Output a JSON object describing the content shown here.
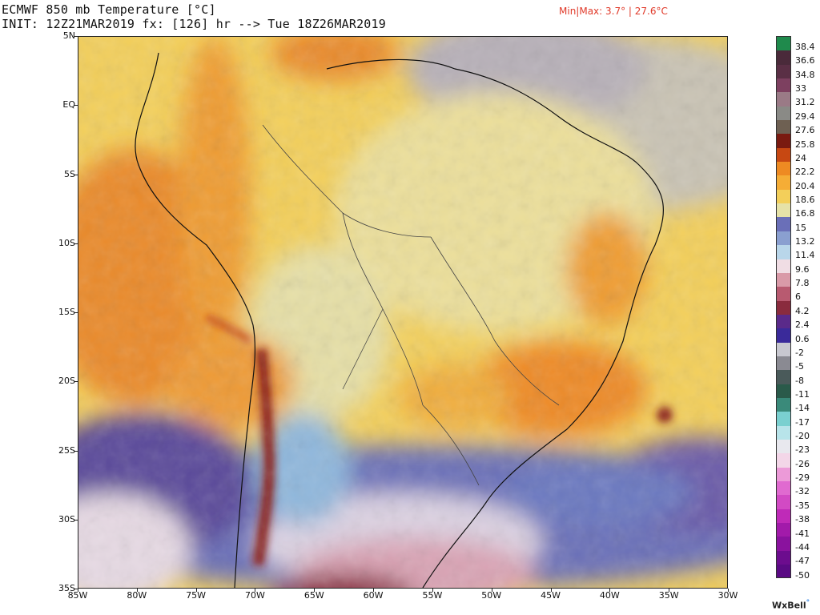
{
  "header": {
    "title": "ECMWF 850 mb Temperature [°C]",
    "init_line": "INIT: 12Z21MAR2019 fx: [126] hr --> Tue 18Z26MAR2019",
    "minmax": "Min|Max: 3.7° | 27.6°C"
  },
  "map": {
    "lat_labels": [
      "5N",
      "EQ",
      "5S",
      "10S",
      "15S",
      "20S",
      "25S",
      "30S",
      "35S"
    ],
    "lon_labels": [
      "85W",
      "80W",
      "75W",
      "70W",
      "65W",
      "60W",
      "55W",
      "50W",
      "45W",
      "40W",
      "35W",
      "30W"
    ],
    "extent": {
      "lon_min": -85,
      "lon_max": -30,
      "lat_min": -35,
      "lat_max": 5
    },
    "colors": {
      "cold_deep": "#5a3a8a",
      "cold": "#6a6fb8",
      "cool_blue": "#8fb7dc",
      "pale": "#e6d9e3",
      "pink": "#d9a3b4",
      "maroon": "#8a2b3e",
      "grey": "#c9c3b4",
      "pale_yellow": "#ecdf9a",
      "yellow": "#f3cf5a",
      "orange_light": "#f0ad3c",
      "orange": "#ea8a2a",
      "dark_red": "#8a1e12"
    }
  },
  "colorbar": {
    "labels": [
      "38.4",
      "36.6",
      "34.8",
      "33",
      "31.2",
      "29.4",
      "27.6",
      "25.8",
      "24",
      "22.2",
      "20.4",
      "18.6",
      "16.8",
      "15",
      "13.2",
      "11.4",
      "9.6",
      "7.8",
      "6",
      "4.2",
      "2.4",
      "0.6",
      "-2",
      "-5",
      "-8",
      "-11",
      "-14",
      "-17",
      "-20",
      "-23",
      "-26",
      "-29",
      "-32",
      "-35",
      "-38",
      "-41",
      "-44",
      "-47",
      "-50"
    ],
    "colors": [
      "#1f8a4c",
      "#4a2a3a",
      "#5a2f45",
      "#7d4060",
      "#9a7a86",
      "#8a8a86",
      "#6e6052",
      "#7a1a10",
      "#c74812",
      "#ee8a22",
      "#f5ad36",
      "#f3cf5a",
      "#e6e2a8",
      "#6a6fb8",
      "#8a9fd0",
      "#b9d6ea",
      "#f0dde4",
      "#d99aa8",
      "#b85a70",
      "#8a2b3e",
      "#5a2a8a",
      "#3a2a9a",
      "#c8c8d0",
      "#8a8a92",
      "#4a5a5a",
      "#2a5a4a",
      "#3a8a7a",
      "#7ad0d0",
      "#b8e4ea",
      "#e8e8ee",
      "#f3d6e8",
      "#ec9ad8",
      "#e06ad0",
      "#d24ac4",
      "#bf2ab8",
      "#a21aaa",
      "#8a129e",
      "#6c0c8e",
      "#5a0a84"
    ]
  },
  "brand": {
    "name": "WxBell",
    "mark": "°"
  }
}
